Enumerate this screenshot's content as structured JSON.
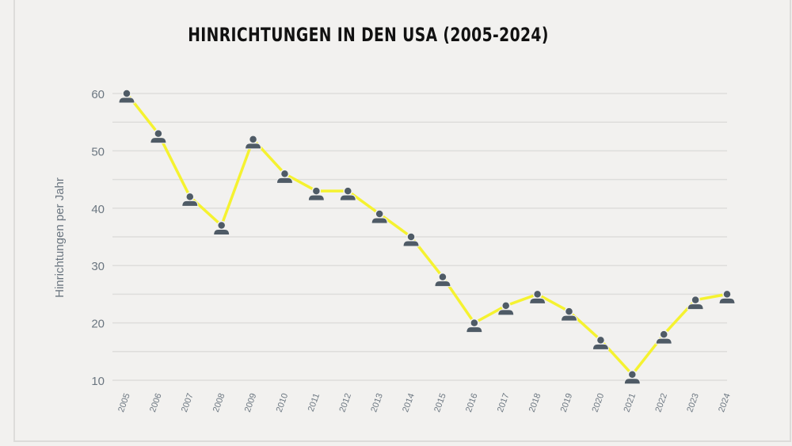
{
  "chart_data": {
    "type": "line",
    "title": "HINRICHTUNGEN IN DEN USA (2005-2024)",
    "xlabel": "",
    "ylabel": "Hinrichtungen per Jahr",
    "categories": [
      "2005",
      "2006",
      "2007",
      "2008",
      "2009",
      "2010",
      "2011",
      "2012",
      "2013",
      "2014",
      "2015",
      "2016",
      "2017",
      "2018",
      "2019",
      "2020",
      "2021",
      "2022",
      "2023",
      "2024"
    ],
    "values": [
      60,
      53,
      42,
      37,
      52,
      46,
      43,
      43,
      39,
      35,
      28,
      20,
      23,
      25,
      22,
      17,
      11,
      18,
      24,
      25
    ],
    "ylim": [
      10,
      60
    ],
    "yticks": [
      10,
      20,
      30,
      40,
      50,
      60
    ],
    "grid": true,
    "marker": "person-icon",
    "colors": {
      "line": "#f5f230",
      "marker": "#4f5b66",
      "grid": "#dedddb",
      "background": "#f2f1ef"
    }
  }
}
